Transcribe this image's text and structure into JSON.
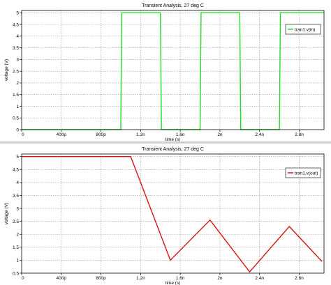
{
  "chart_data": [
    {
      "type": "line",
      "title": "Transient Analysis, 27 deg C",
      "xlabel": "time (s)",
      "ylabel": "voltage (V)",
      "xlim": [
        0,
        3.05e-09
      ],
      "ylim": [
        0,
        5.1
      ],
      "x_ticks": [
        0,
        4e-10,
        8e-10,
        1.2e-09,
        1.6e-09,
        2e-09,
        2.4e-09,
        2.8e-09
      ],
      "x_tick_labels": [
        "0",
        "400p",
        "800p",
        "1.2n",
        "1.6n",
        "2n",
        "2.4n",
        "2.8n"
      ],
      "y_ticks": [
        0,
        0.5,
        1,
        1.5,
        2,
        2.5,
        3,
        3.5,
        4,
        4.5,
        5
      ],
      "y_tick_labels": [
        "0",
        "0.5",
        "1",
        "1.5",
        "2",
        "2.5",
        "3",
        "3.5",
        "4",
        "4.5",
        "5"
      ],
      "grid": true,
      "legend_position": "top-right",
      "series": [
        {
          "name": "tran1.v(in)",
          "color": "#22dd22",
          "x": [
            0,
            1e-09,
            1.01e-09,
            1.4e-09,
            1.41e-09,
            1.8e-09,
            1.81e-09,
            2.2e-09,
            2.21e-09,
            2.6e-09,
            2.61e-09,
            3.05e-09
          ],
          "y": [
            0,
            0,
            5,
            5,
            0,
            0,
            5,
            5,
            0,
            0,
            5,
            5
          ]
        }
      ]
    },
    {
      "type": "line",
      "title": "Transient Analysis, 27 deg C",
      "xlabel": "time (s)",
      "ylabel": "voltage (V)",
      "xlim": [
        0,
        3.05e-09
      ],
      "ylim": [
        0.5,
        5.1
      ],
      "x_ticks": [
        0,
        4e-10,
        8e-10,
        1.2e-09,
        1.6e-09,
        2e-09,
        2.4e-09,
        2.8e-09
      ],
      "x_tick_labels": [
        "0",
        "400p",
        "800p",
        "1.2n",
        "1.6n",
        "2n",
        "2.4n",
        "2.8n"
      ],
      "y_ticks": [
        0.5,
        1,
        1.5,
        2,
        2.5,
        3,
        3.5,
        4,
        4.5,
        5
      ],
      "y_tick_labels": [
        "0.5",
        "1",
        "1.5",
        "2",
        "2.5",
        "3",
        "3.5",
        "4",
        "4.5",
        "5"
      ],
      "grid": true,
      "legend_position": "top-right",
      "series": [
        {
          "name": "tran1.v(out)",
          "color": "#dd1111",
          "x": [
            0,
            1.1e-09,
            1.5e-09,
            1.9e-09,
            2.3e-09,
            2.7e-09,
            3.03e-09
          ],
          "y": [
            5,
            5,
            1.0,
            2.55,
            0.55,
            2.3,
            0.95
          ]
        }
      ]
    }
  ]
}
